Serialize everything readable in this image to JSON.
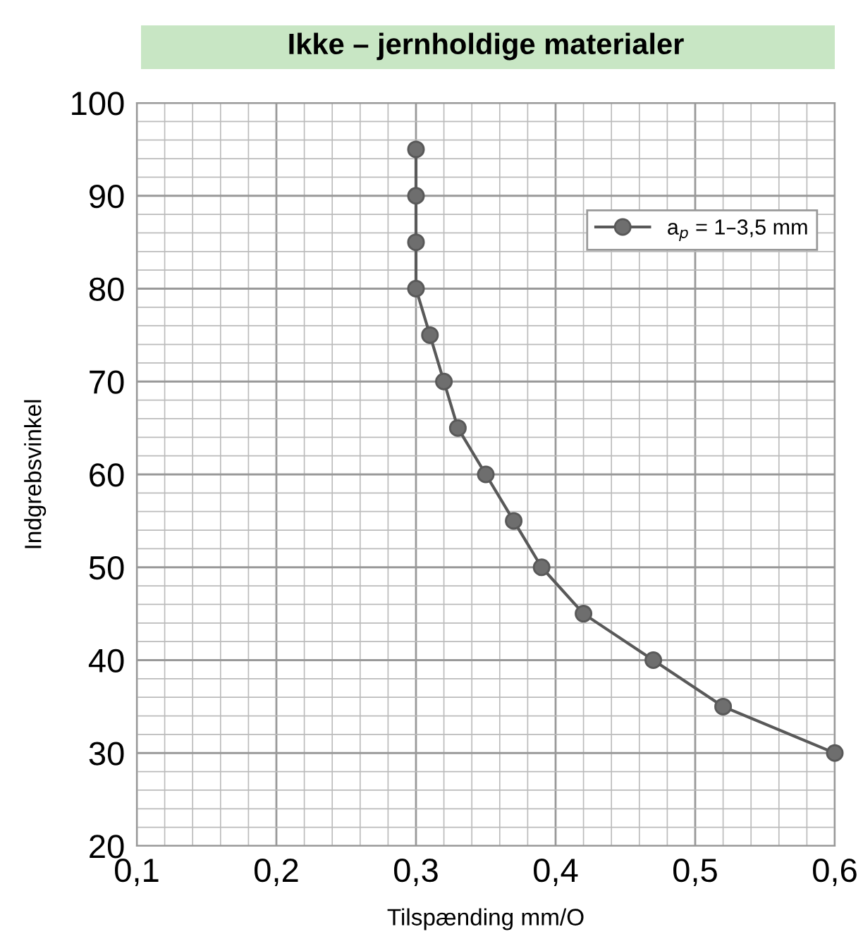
{
  "chart_data": {
    "type": "line",
    "title": "Ikke – jernholdige materialer",
    "xlabel": "Tilspænding mm/O",
    "ylabel": "Indgrebsvinkel",
    "x": [
      0.3,
      0.3,
      0.3,
      0.3,
      0.31,
      0.32,
      0.33,
      0.35,
      0.37,
      0.39,
      0.42,
      0.47,
      0.52,
      0.6
    ],
    "series": [
      {
        "name": "a$_{p}$ = 1–3,5 mm",
        "color": "#595959",
        "values": [
          95,
          90,
          85,
          80,
          75,
          70,
          65,
          60,
          55,
          50,
          45,
          40,
          35,
          30
        ]
      }
    ],
    "xlim": [
      0.1,
      0.6
    ],
    "xticks": [
      {
        "value": 0.1,
        "label": "0,1"
      },
      {
        "value": 0.2,
        "label": "0,2"
      },
      {
        "value": 0.3,
        "label": "0,3"
      },
      {
        "value": 0.4,
        "label": "0,4"
      },
      {
        "value": 0.5,
        "label": "0,5"
      },
      {
        "value": 0.6,
        "label": "0,6"
      }
    ],
    "ylim": [
      20,
      100
    ],
    "yticks": [
      20,
      30,
      40,
      50,
      60,
      70,
      80,
      90,
      100
    ],
    "grid": true,
    "legend": "top right",
    "marker": "circle",
    "line_style": "solid"
  }
}
